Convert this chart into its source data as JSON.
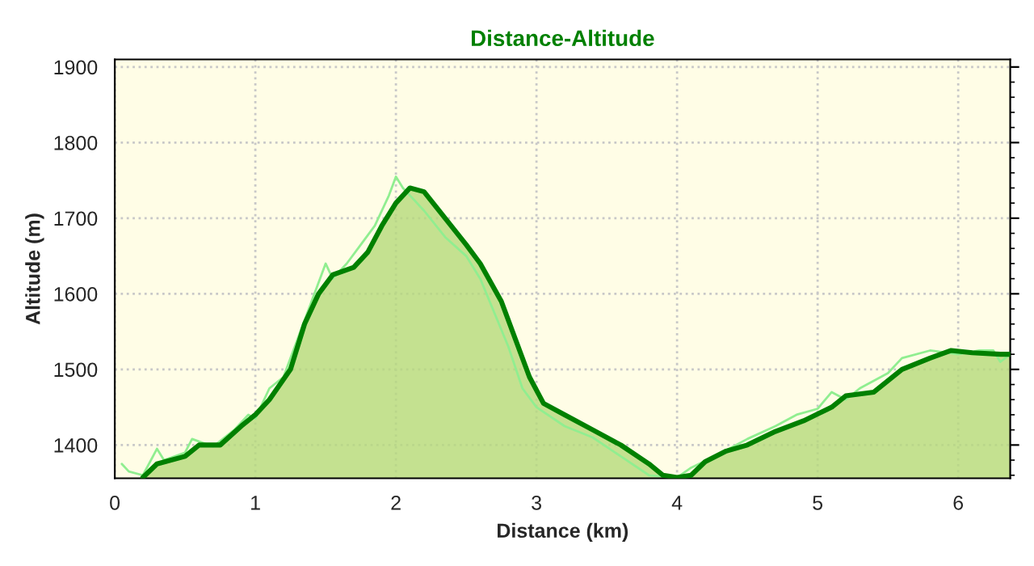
{
  "chart_data": {
    "type": "area",
    "title": "Distance-Altitude",
    "xlabel": "Distance (km)",
    "ylabel": "Altitude (m)",
    "xlim": [
      0,
      6.37
    ],
    "xticks": [
      0,
      1,
      2,
      3,
      4,
      5,
      6
    ],
    "ylim": [
      1356,
      1910
    ],
    "yticks": [
      1400,
      1500,
      1600,
      1700,
      1800,
      1900
    ],
    "grid": true,
    "legend": false,
    "series": [
      {
        "type": "line",
        "color": "#90ee90",
        "x": [
          0.05,
          0.1,
          0.2,
          0.3,
          0.35,
          0.5,
          0.55,
          0.7,
          0.85,
          0.95,
          1.0,
          1.1,
          1.2,
          1.3,
          1.4,
          1.5,
          1.55,
          1.65,
          1.75,
          1.85,
          1.95,
          2.0,
          2.05,
          2.2,
          2.35,
          2.5,
          2.6,
          2.7,
          2.8,
          2.9,
          3.0,
          3.2,
          3.4,
          3.6,
          3.8,
          4.0,
          4.1,
          4.3,
          4.5,
          4.7,
          4.85,
          5.0,
          5.1,
          5.2,
          5.3,
          5.5,
          5.6,
          5.8,
          6.0,
          6.15,
          6.25,
          6.3,
          6.37
        ],
        "values": [
          1375,
          1365,
          1360,
          1395,
          1380,
          1390,
          1408,
          1398,
          1420,
          1440,
          1435,
          1475,
          1490,
          1540,
          1590,
          1640,
          1620,
          1640,
          1665,
          1690,
          1730,
          1755,
          1740,
          1710,
          1675,
          1650,
          1620,
          1575,
          1530,
          1475,
          1450,
          1425,
          1410,
          1385,
          1360,
          1357,
          1370,
          1388,
          1408,
          1425,
          1440,
          1448,
          1470,
          1460,
          1475,
          1495,
          1515,
          1525,
          1520,
          1525,
          1525,
          1510,
          1520
        ]
      },
      {
        "color": "#008000",
        "x": [
          0.2,
          0.3,
          0.5,
          0.6,
          0.75,
          0.9,
          1.0,
          1.1,
          1.25,
          1.35,
          1.45,
          1.55,
          1.7,
          1.8,
          1.9,
          2.0,
          2.1,
          2.2,
          2.35,
          2.5,
          2.6,
          2.75,
          2.85,
          2.95,
          3.05,
          3.2,
          3.4,
          3.6,
          3.8,
          3.9,
          4.0,
          4.1,
          4.2,
          4.35,
          4.5,
          4.7,
          4.9,
          5.1,
          5.2,
          5.4,
          5.6,
          5.8,
          5.95,
          6.1,
          6.3,
          6.37
        ],
        "values": [
          1357,
          1375,
          1385,
          1400,
          1400,
          1425,
          1440,
          1460,
          1500,
          1560,
          1600,
          1625,
          1635,
          1655,
          1690,
          1720,
          1740,
          1735,
          1700,
          1665,
          1640,
          1590,
          1540,
          1490,
          1455,
          1440,
          1420,
          1400,
          1375,
          1360,
          1357,
          1360,
          1378,
          1392,
          1400,
          1418,
          1432,
          1450,
          1465,
          1470,
          1500,
          1515,
          1525,
          1522,
          1520,
          1520
        ]
      }
    ]
  }
}
